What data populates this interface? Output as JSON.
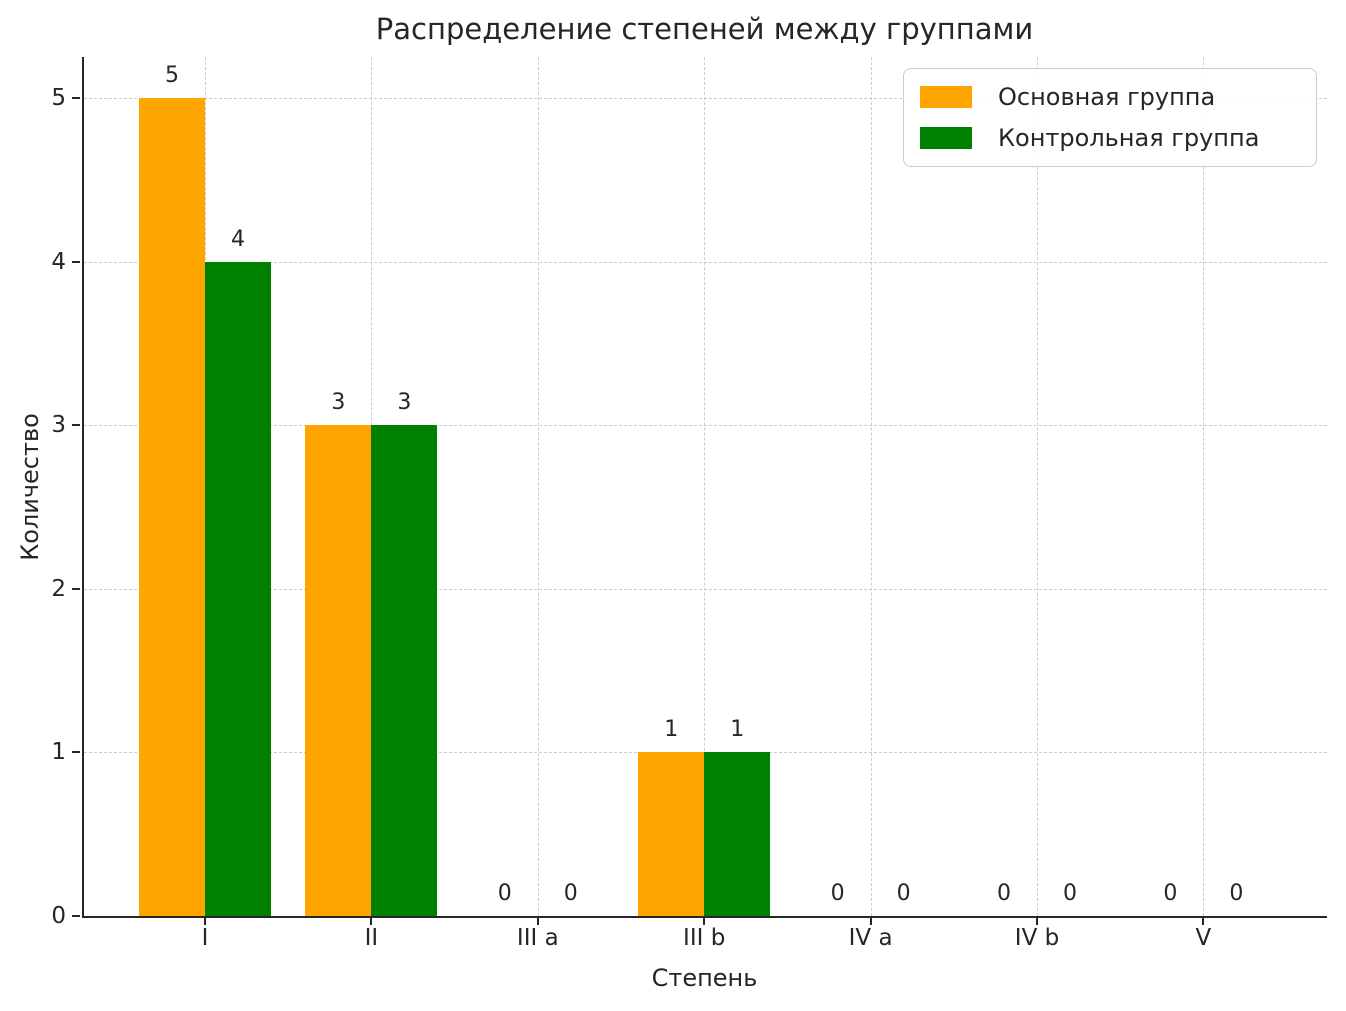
{
  "chart_data": {
    "type": "bar",
    "title": "Распределение степеней между группами",
    "xlabel": "Степень",
    "ylabel": "Количество",
    "categories": [
      "I",
      "II",
      "III a",
      "III b",
      "IV a",
      "IV b",
      "V"
    ],
    "series": [
      {
        "name": "Основная группа",
        "color": "#FFA500",
        "values": [
          5,
          3,
          0,
          1,
          0,
          0,
          0
        ]
      },
      {
        "name": "Контрольная группа",
        "color": "#008000",
        "values": [
          4,
          3,
          0,
          1,
          0,
          0,
          0
        ]
      }
    ],
    "yticks": [
      0,
      1,
      2,
      3,
      4,
      5
    ],
    "ylim": [
      0,
      5.25
    ],
    "grid": true,
    "grid_style": "dashed",
    "grid_color": "#cccccc",
    "axis_color": "#262626",
    "legend_position": "upper right",
    "bar_value_labels": true
  }
}
